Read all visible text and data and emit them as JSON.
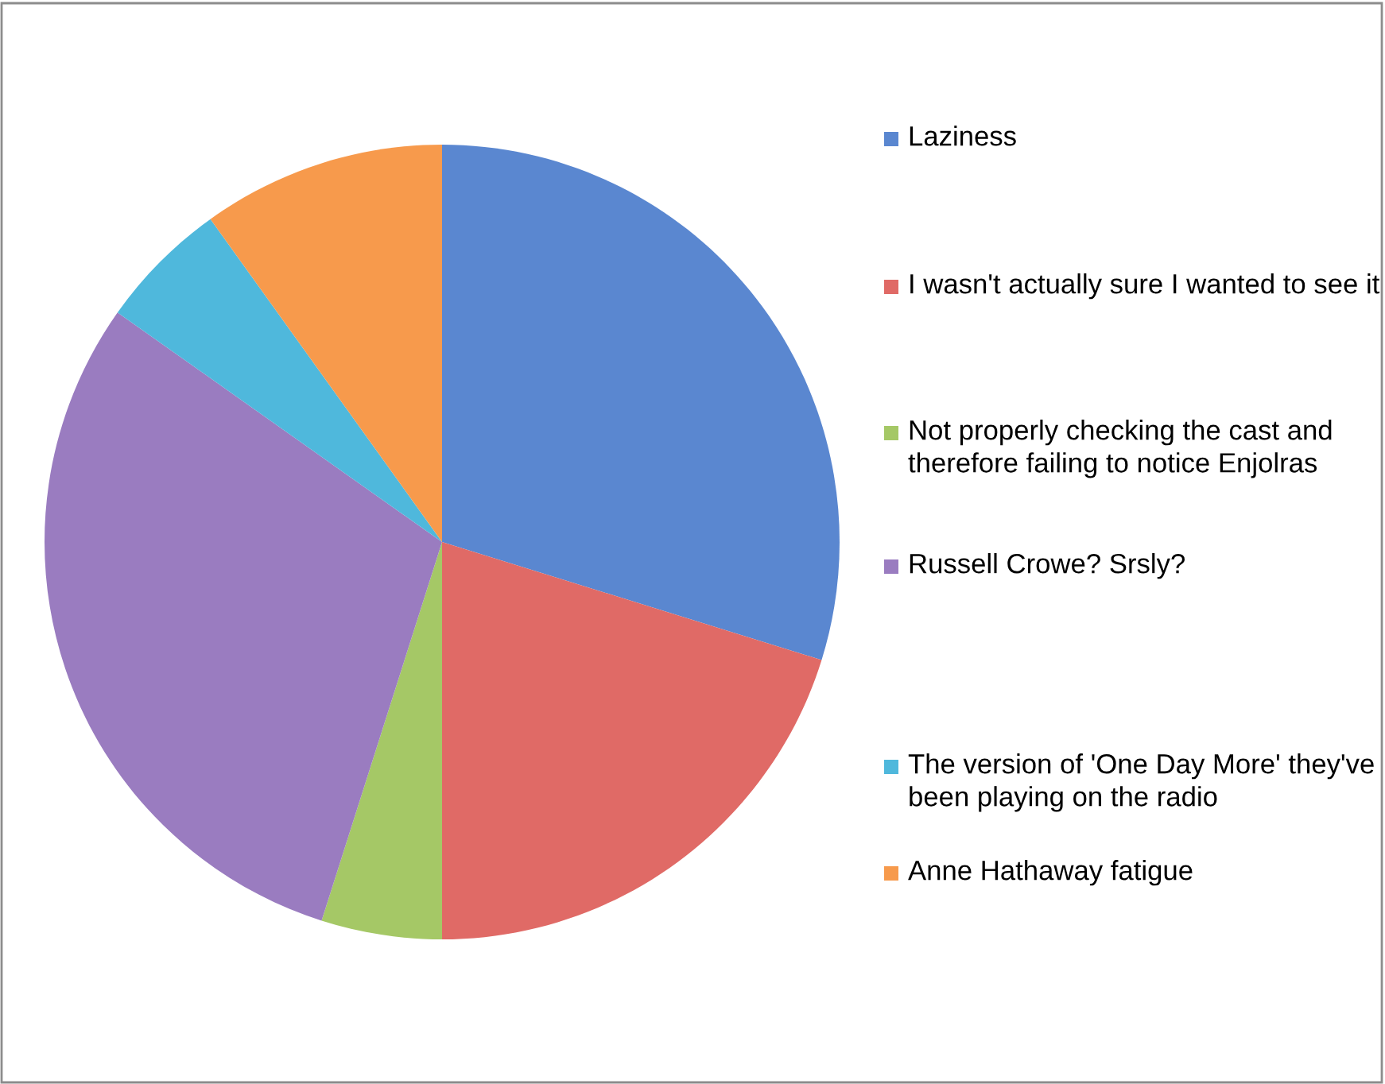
{
  "chart_data": {
    "type": "pie",
    "categories": [
      "Laziness",
      "I wasn't actually sure I wanted to see it",
      "Not properly checking the cast and therefore failing to notice Enjolras",
      "Russell Crowe? Srsly?",
      "The version of 'One Day More' they've been playing on the radio",
      "Anne Hathaway fatigue"
    ],
    "values": [
      29.8,
      20.2,
      4.9,
      29.9,
      5.3,
      9.9
    ],
    "colors": [
      "#5a87d0",
      "#e06a66",
      "#a5c866",
      "#9a7cc0",
      "#4fb8dc",
      "#f79a4c"
    ],
    "legend": "right"
  }
}
